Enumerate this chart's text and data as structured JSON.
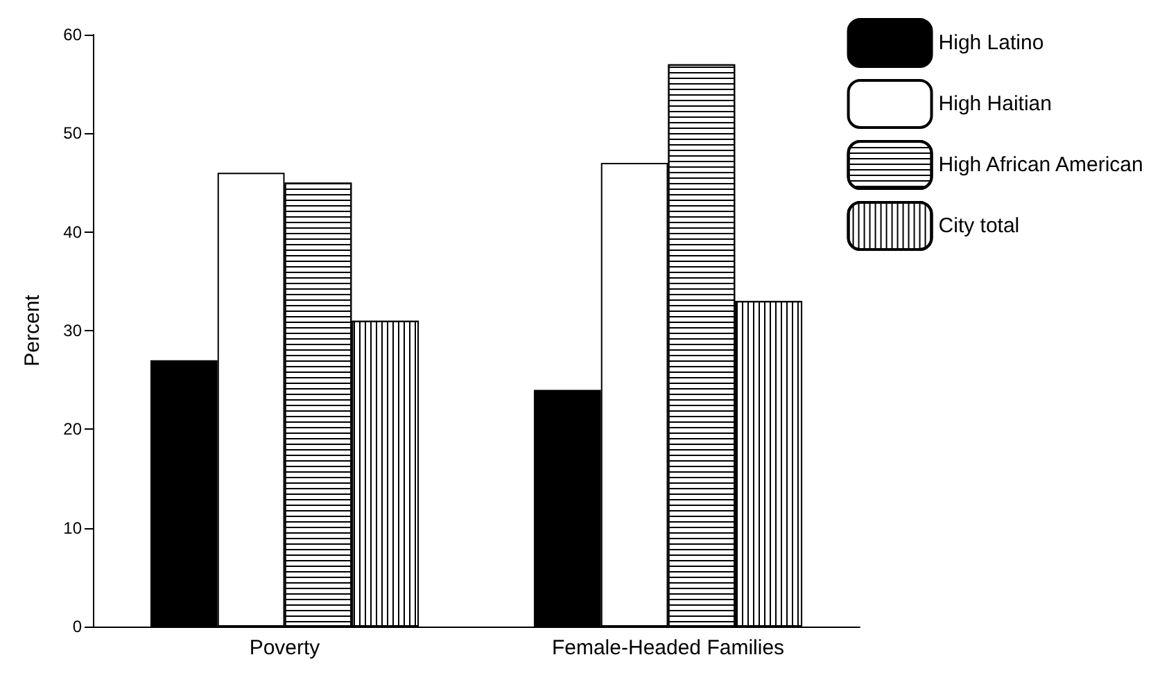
{
  "chart_data": {
    "type": "bar",
    "ylabel": "Percent",
    "categories": [
      "Poverty",
      "Female-Headed Families"
    ],
    "series": [
      {
        "name": "High Latino",
        "color": "#000000",
        "values": [
          27,
          24
        ]
      },
      {
        "name": "High Haitian",
        "color": "#ffffff",
        "values": [
          46,
          47
        ]
      },
      {
        "name": "High African American",
        "color": "#ffffff",
        "values": [
          45,
          57
        ]
      },
      {
        "name": "City total",
        "color": "#ffffff",
        "values": [
          31,
          33
        ]
      }
    ],
    "ylim": [
      0,
      60
    ],
    "yticks": [
      0,
      10,
      20,
      30,
      40,
      50,
      60
    ],
    "grid": false,
    "legend": "top right"
  }
}
